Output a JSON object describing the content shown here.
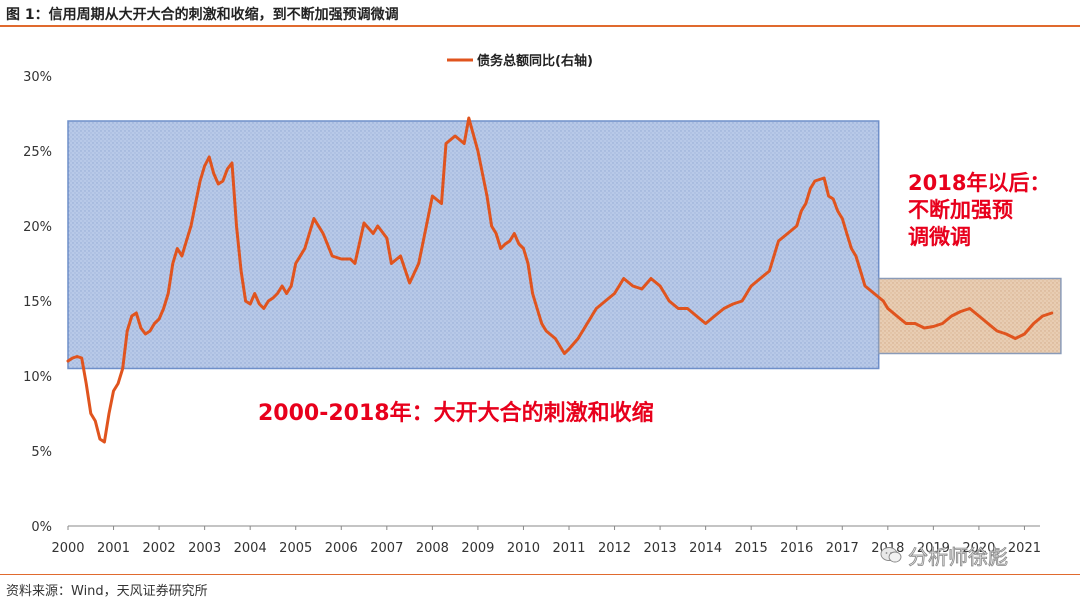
{
  "header": {
    "title": "图 1：信用周期从大开大合的刺激和收缩，到不断加强预调微调"
  },
  "footer": {
    "source": "资料来源：Wind，天风证券研究所"
  },
  "watermark": {
    "text": "分析师徐彪",
    "icon": "wechat-icon"
  },
  "colors": {
    "line": "#e0541e",
    "annotation": "#e8001c",
    "box1": "#b4c6e7",
    "box2": "#e7c9ad",
    "accent": "#e06a2e"
  },
  "chart_data": {
    "type": "line",
    "legend": {
      "label": "债务总额同比(右轴)",
      "placement": "top-center"
    },
    "x": [
      2000.0,
      2000.1,
      2000.2,
      2000.3,
      2000.4,
      2000.5,
      2000.6,
      2000.7,
      2000.8,
      2000.9,
      2001.0,
      2001.1,
      2001.2,
      2001.3,
      2001.4,
      2001.5,
      2001.6,
      2001.7,
      2001.8,
      2001.9,
      2002.0,
      2002.1,
      2002.2,
      2002.3,
      2002.4,
      2002.5,
      2002.6,
      2002.7,
      2002.8,
      2002.9,
      2003.0,
      2003.1,
      2003.2,
      2003.3,
      2003.4,
      2003.5,
      2003.6,
      2003.7,
      2003.8,
      2003.9,
      2004.0,
      2004.1,
      2004.2,
      2004.3,
      2004.4,
      2004.5,
      2004.6,
      2004.7,
      2004.8,
      2004.9,
      2005.0,
      2005.2,
      2005.4,
      2005.6,
      2005.8,
      2006.0,
      2006.2,
      2006.3,
      2006.5,
      2006.7,
      2006.8,
      2007.0,
      2007.1,
      2007.3,
      2007.5,
      2007.7,
      2007.8,
      2008.0,
      2008.2,
      2008.3,
      2008.5,
      2008.7,
      2008.8,
      2009.0,
      2009.2,
      2009.3,
      2009.4,
      2009.5,
      2009.6,
      2009.7,
      2009.8,
      2009.9,
      2010.0,
      2010.1,
      2010.2,
      2010.3,
      2010.4,
      2010.5,
      2010.7,
      2010.9,
      2011.0,
      2011.2,
      2011.4,
      2011.6,
      2011.8,
      2012.0,
      2012.2,
      2012.4,
      2012.6,
      2012.8,
      2013.0,
      2013.2,
      2013.4,
      2013.6,
      2013.8,
      2014.0,
      2014.2,
      2014.4,
      2014.6,
      2014.8,
      2015.0,
      2015.2,
      2015.4,
      2015.6,
      2015.8,
      2016.0,
      2016.1,
      2016.2,
      2016.3,
      2016.4,
      2016.5,
      2016.6,
      2016.7,
      2016.8,
      2016.9,
      2017.0,
      2017.1,
      2017.2,
      2017.3,
      2017.4,
      2017.5,
      2017.7,
      2017.9,
      2018.0,
      2018.2,
      2018.4,
      2018.6,
      2018.8,
      2019.0,
      2019.2,
      2019.4,
      2019.6,
      2019.8,
      2020.0,
      2020.2,
      2020.4,
      2020.6,
      2020.8,
      2021.0,
      2021.2,
      2021.4,
      2021.6
    ],
    "y": [
      11.0,
      11.2,
      11.3,
      11.2,
      9.5,
      7.5,
      7.0,
      5.8,
      5.6,
      7.5,
      9.0,
      9.5,
      10.5,
      13.0,
      14.0,
      14.2,
      13.2,
      12.8,
      13.0,
      13.5,
      13.8,
      14.5,
      15.5,
      17.5,
      18.5,
      18.0,
      19.0,
      20.0,
      21.5,
      23.0,
      24.0,
      24.6,
      23.5,
      22.8,
      23.0,
      23.8,
      24.2,
      20.0,
      17.0,
      15.0,
      14.8,
      15.5,
      14.8,
      14.5,
      15.0,
      15.2,
      15.5,
      16.0,
      15.5,
      16.0,
      17.5,
      18.5,
      20.5,
      19.5,
      18.0,
      17.8,
      17.8,
      17.5,
      20.2,
      19.5,
      20.0,
      19.2,
      17.5,
      18.0,
      16.2,
      17.5,
      19.0,
      22.0,
      21.5,
      25.5,
      26.0,
      25.5,
      27.2,
      25.0,
      22.0,
      20.0,
      19.5,
      18.5,
      18.8,
      19.0,
      19.5,
      18.8,
      18.5,
      17.5,
      15.5,
      14.5,
      13.5,
      13.0,
      12.5,
      11.5,
      11.8,
      12.5,
      13.5,
      14.5,
      15.0,
      15.5,
      16.5,
      16.0,
      15.8,
      16.5,
      16.0,
      15.0,
      14.5,
      14.5,
      14.0,
      13.5,
      14.0,
      14.5,
      14.8,
      15.0,
      16.0,
      16.5,
      17.0,
      19.0,
      19.5,
      20.0,
      21.0,
      21.5,
      22.5,
      23.0,
      23.1,
      23.2,
      22.0,
      21.8,
      21.0,
      20.5,
      19.5,
      18.5,
      18.0,
      17.0,
      16.0,
      15.5,
      15.0,
      14.5,
      14.0,
      13.5,
      13.5,
      13.2,
      13.3,
      13.5,
      14.0,
      14.3,
      14.5,
      14.0,
      13.5,
      13.0,
      12.8,
      12.5,
      12.8,
      13.5,
      14.0,
      14.2
    ],
    "xticks": [
      "2000",
      "2001",
      "2002",
      "2003",
      "2004",
      "2005",
      "2006",
      "2007",
      "2008",
      "2009",
      "2010",
      "2011",
      "2012",
      "2013",
      "2014",
      "2015",
      "2016",
      "2017",
      "2018",
      "2019",
      "2020",
      "2021"
    ],
    "yticks": [
      "0%",
      "5%",
      "10%",
      "15%",
      "20%",
      "25%",
      "30%"
    ],
    "xlim": [
      2000,
      2022
    ],
    "ylim": [
      0,
      30
    ],
    "regions": [
      {
        "x0": 2000,
        "x1": 2017.8,
        "y0": 10.5,
        "y1": 27.0
      },
      {
        "x0": 2017.8,
        "x1": 2021.8,
        "y0": 11.5,
        "y1": 16.5
      }
    ],
    "annotations": [
      {
        "lines": [
          "2000-2018年：大开大合的刺激和收缩"
        ]
      },
      {
        "lines": [
          "2018年以后：",
          "不断加强预",
          "调微调"
        ]
      }
    ],
    "grid": false
  }
}
